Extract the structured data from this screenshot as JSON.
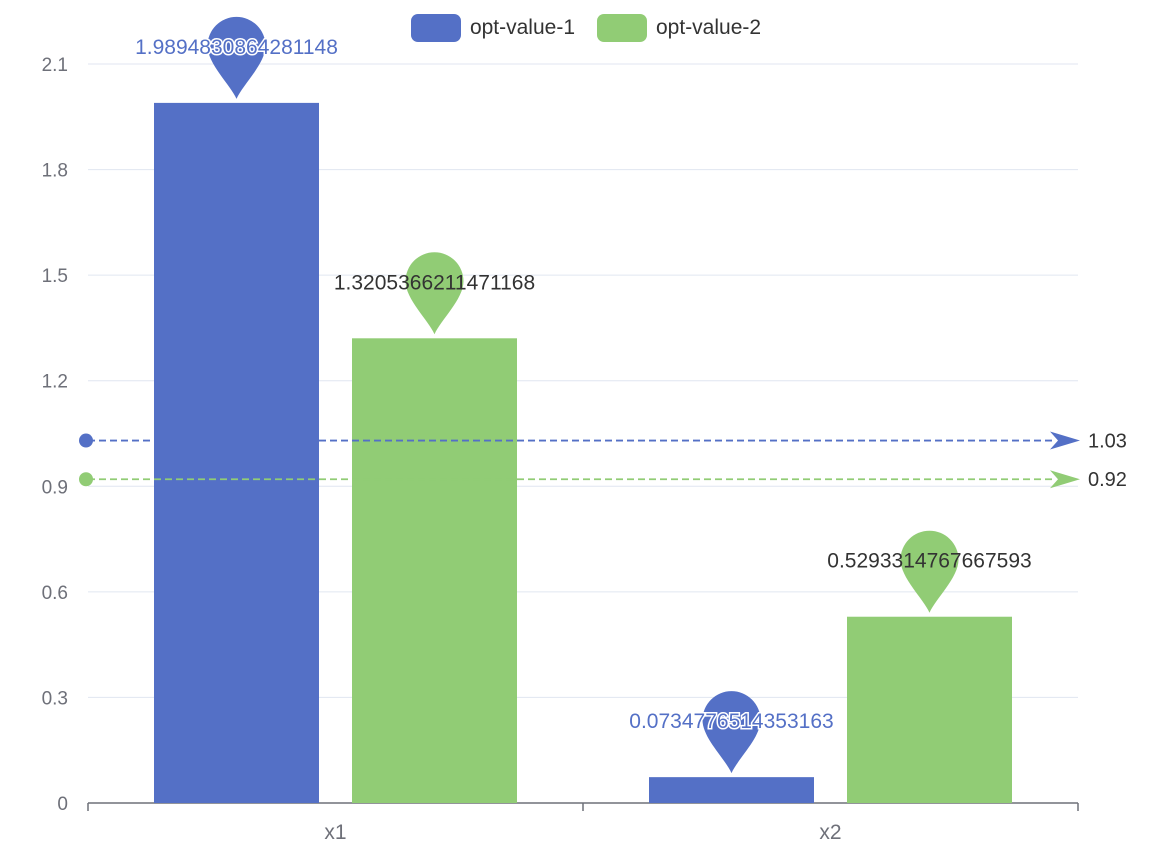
{
  "chart_data": {
    "type": "bar",
    "categories": [
      "x1",
      "x2"
    ],
    "series": [
      {
        "name": "opt-value-1",
        "color": "#5470c6",
        "values": [
          1.9894830864281148,
          0.0734776514353163
        ],
        "max_label": "1.9894830864281148",
        "min_label": "0.0734776514353163",
        "average": 1.03,
        "average_label": "1.03"
      },
      {
        "name": "opt-value-2",
        "color": "#91cc75",
        "values": [
          1.3205366211471168,
          0.5293314767667593
        ],
        "max_label": "1.3205366211471168",
        "min_label": "0.5293314767667593",
        "average": 0.92,
        "average_label": "0.92"
      }
    ],
    "y_ticks": [
      "0",
      "0.3",
      "0.6",
      "0.9",
      "1.2",
      "1.5",
      "1.8",
      "2.1"
    ],
    "ylim": [
      0,
      2.1
    ],
    "grid": true,
    "legend_position": "top-center",
    "markers": "max and min value pins; dashed average line per series"
  }
}
